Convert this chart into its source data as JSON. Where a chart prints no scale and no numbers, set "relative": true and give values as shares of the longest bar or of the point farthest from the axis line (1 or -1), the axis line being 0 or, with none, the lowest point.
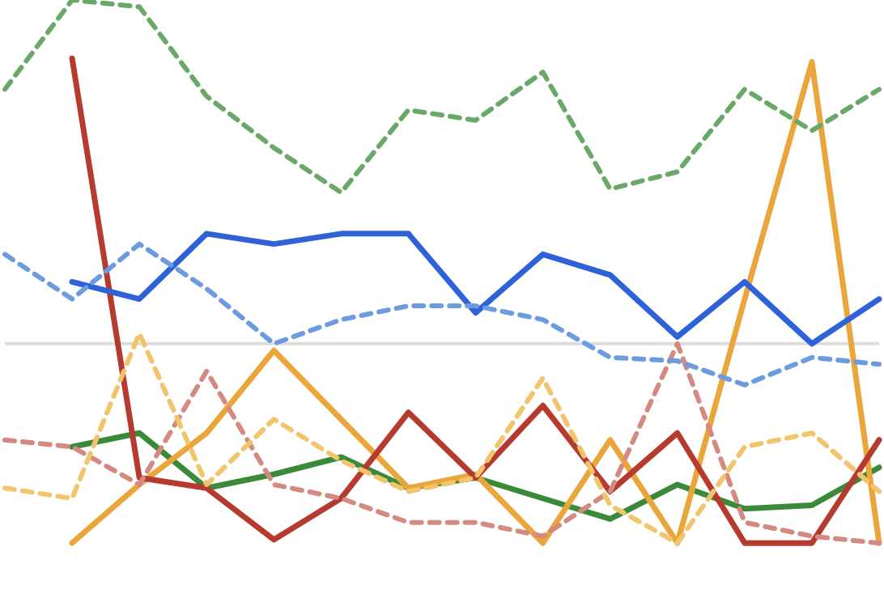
{
  "chart_data": {
    "type": "line",
    "relative": true,
    "categories": [
      null,
      null,
      null,
      null,
      null,
      null,
      null,
      null,
      null,
      null,
      null,
      null,
      null,
      null
    ],
    "legend": false,
    "grid": false,
    "marker": "none",
    "ref_lines": [
      {
        "axis": "y",
        "value": 0,
        "color": "#dddddd"
      }
    ],
    "series": [
      {
        "color": "#6aa86a",
        "line_style": "dashed",
        "values": [
          0.74,
          1,
          0.98,
          0.72,
          0.57,
          0.44,
          0.68,
          0.65,
          0.79,
          0.45,
          0.5,
          0.74,
          0.62,
          0.74
        ]
      },
      {
        "color": "#6d9be0",
        "line_style": "dashed",
        "values": [
          0.26,
          0.13,
          0.29,
          0.16,
          0,
          0.07,
          0.11,
          0.11,
          0.07,
          -0.04,
          -0.05,
          -0.12,
          -0.04,
          -0.06
        ]
      },
      {
        "color": "#f2c46b",
        "line_style": "dashed",
        "values": [
          -0.42,
          -0.45,
          0.03,
          -0.41,
          -0.22,
          -0.34,
          -0.43,
          -0.39,
          -0.1,
          -0.47,
          -0.58,
          -0.3,
          -0.26,
          -0.43
        ]
      },
      {
        "color": "#d48a80",
        "line_style": "dashed",
        "values": [
          -0.28,
          -0.3,
          -0.41,
          -0.08,
          -0.41,
          -0.45,
          -0.52,
          -0.52,
          -0.56,
          -0.43,
          0,
          -0.52,
          -0.56,
          -0.58
        ]
      },
      {
        "color": "#2f62d8",
        "line_style": "solid",
        "values": [
          null,
          0.18,
          0.13,
          0.32,
          0.29,
          0.32,
          0.32,
          0.09,
          0.26,
          0.2,
          0.02,
          0.18,
          0,
          0.13
        ]
      },
      {
        "color": "#b63a2e",
        "line_style": "solid",
        "values": [
          null,
          0.83,
          -0.39,
          -0.42,
          -0.57,
          -0.45,
          -0.2,
          -0.39,
          -0.18,
          -0.43,
          -0.26,
          -0.58,
          -0.58,
          -0.28
        ]
      },
      {
        "color": "#eaa63a",
        "line_style": "solid",
        "values": [
          null,
          -0.58,
          -0.41,
          -0.26,
          -0.02,
          -0.22,
          -0.42,
          -0.38,
          -0.58,
          -0.28,
          -0.58,
          0.13,
          0.82,
          -0.58
        ]
      },
      {
        "color": "#3a8a3a",
        "line_style": "solid",
        "values": [
          null,
          -0.3,
          -0.26,
          -0.42,
          -0.38,
          -0.33,
          -0.42,
          -0.39,
          -0.45,
          -0.51,
          -0.41,
          -0.48,
          -0.47,
          -0.36
        ]
      }
    ]
  }
}
